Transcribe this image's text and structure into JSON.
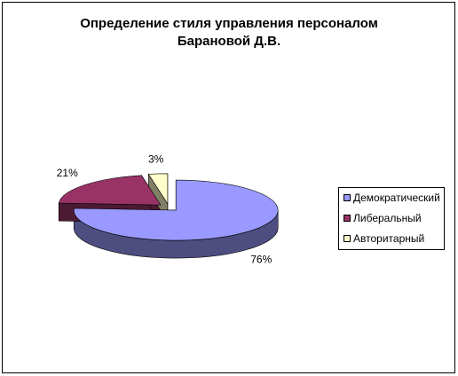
{
  "chart_data": {
    "type": "pie3d",
    "title": "Определение стиля управления персоналом Барановой Д.В.",
    "categories": [
      "Демократический",
      "Либеральный",
      "Авторитарный"
    ],
    "values": [
      76,
      21,
      3
    ],
    "value_labels": [
      "76%",
      "21%",
      "3%"
    ],
    "colors": [
      "#9999ff",
      "#993366",
      "#ffffcc"
    ],
    "legend": "right"
  }
}
